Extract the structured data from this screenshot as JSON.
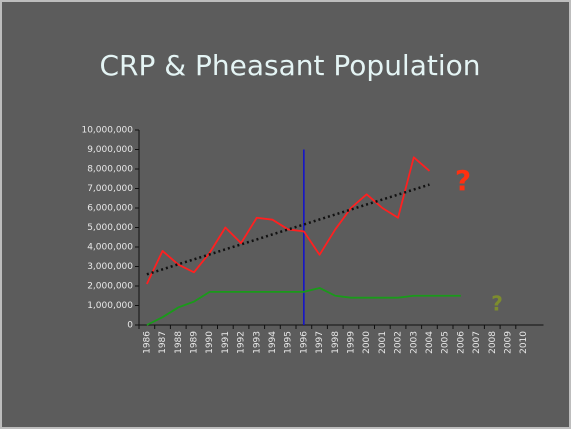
{
  "chart_data": {
    "type": "line",
    "title": "CRP & Pheasant Population",
    "categories": [
      "1986",
      "1987",
      "1988",
      "1989",
      "1990",
      "1991",
      "1992",
      "1993",
      "1994",
      "1995",
      "1996",
      "1997",
      "1998",
      "1999",
      "2000",
      "2001",
      "2002",
      "2003",
      "2004",
      "2005",
      "2006",
      "2007",
      "2008",
      "2009",
      "2010"
    ],
    "series": [
      {
        "color": "#ff2020",
        "values": [
          2100000,
          3800000,
          3100000,
          2700000,
          3700000,
          5000000,
          4200000,
          5500000,
          5400000,
          4900000,
          4800000,
          3600000,
          4900000,
          6000000,
          6700000,
          6000000,
          5500000,
          8600000,
          7900000,
          null,
          null,
          null,
          null,
          null,
          null
        ]
      },
      {
        "color": "#1a9a1a",
        "values": [
          0,
          400000,
          900000,
          1200000,
          1700000,
          1700000,
          1700000,
          1700000,
          1700000,
          1700000,
          1700000,
          1900000,
          1500000,
          1400000,
          1400000,
          1400000,
          1400000,
          1500000,
          1500000,
          1500000,
          1500000,
          null,
          null,
          null,
          null
        ]
      }
    ],
    "trend": {
      "start_category": "1986",
      "end_category": "2004",
      "start": 2600000,
      "end": 7200000,
      "color": "#111111"
    },
    "marker_line": {
      "category": "1996",
      "top": 9000000,
      "color": "#1010d0"
    },
    "annotations": [
      {
        "text": "?",
        "color": "#ff3010"
      },
      {
        "text": "?",
        "color": "#7d8c2e"
      }
    ],
    "ylim": [
      0,
      10000000
    ],
    "yticks": [
      0,
      {
        "value": 1000000,
        "label": "1,000,000"
      },
      {
        "value": 2000000,
        "label": "2,000,000"
      },
      {
        "value": 3000000,
        "label": "3,000,000"
      },
      {
        "value": 4000000,
        "label": "4,000,000"
      },
      {
        "value": 5000000,
        "label": "5,000,000"
      },
      {
        "value": 6000000,
        "label": "6,000,000"
      },
      {
        "value": 7000000,
        "label": "7,000,000"
      },
      {
        "value": 8000000,
        "label": "8,000,000"
      },
      {
        "value": 9000000,
        "label": "9,000,000"
      },
      {
        "value": 10000000,
        "label": "10,000,000"
      }
    ]
  }
}
